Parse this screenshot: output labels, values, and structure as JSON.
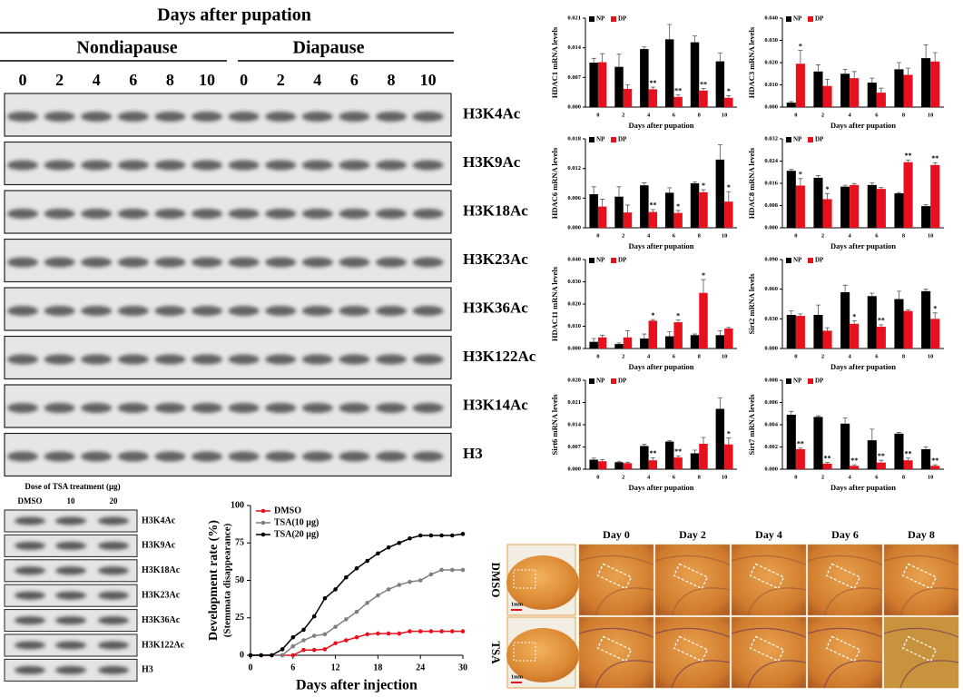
{
  "western_blot": {
    "title": "Days after pupation",
    "groups": [
      "Nondiapause",
      "Diapause"
    ],
    "lanes": [
      "0",
      "2",
      "4",
      "6",
      "8",
      "10",
      "0",
      "2",
      "4",
      "6",
      "8",
      "10"
    ],
    "rows": [
      "H3K4Ac",
      "H3K9Ac",
      "H3K18Ac",
      "H3K23Ac",
      "H3K36Ac",
      "H3K122Ac",
      "H3K14Ac",
      "H3"
    ]
  },
  "chart_data": [
    {
      "type": "bar",
      "ylabel": "HDAC1 mRNA  levels",
      "xlabel": "Days after pupation",
      "categories": [
        "0",
        "2",
        "4",
        "6",
        "8",
        "10"
      ],
      "ylim": [
        0,
        0.021
      ],
      "yticks": [
        {
          "value": 0,
          "label": "0.000"
        },
        {
          "value": 0.007,
          "label": "0.007"
        },
        {
          "value": 0.014,
          "label": "0.014"
        },
        {
          "value": 0.021,
          "label": "0.021"
        }
      ],
      "series": [
        {
          "name": "NP",
          "color": "#000000",
          "values": [
            0.0105,
            0.0095,
            0.0137,
            0.016,
            0.0153,
            0.0108
          ],
          "errors": [
            0.001,
            0.003,
            0.0005,
            0.0035,
            0.0015,
            0.002
          ]
        },
        {
          "name": "DP",
          "color": "#e8101c",
          "values": [
            0.0106,
            0.0043,
            0.0042,
            0.0024,
            0.0039,
            0.0022
          ],
          "errors": [
            0.002,
            0.001,
            0.0005,
            0.0005,
            0.0005,
            0.0005
          ],
          "annotations": [
            null,
            null,
            "**",
            "**",
            "**",
            "*"
          ]
        }
      ]
    },
    {
      "type": "bar",
      "ylabel": "HDAC3 mRNA  levels",
      "xlabel": "Days after pupation",
      "categories": [
        "0",
        "2",
        "4",
        "6",
        "8",
        "10"
      ],
      "ylim": [
        0,
        0.04
      ],
      "yticks": [
        {
          "value": 0,
          "label": "0.000"
        },
        {
          "value": 0.01,
          "label": "0.010"
        },
        {
          "value": 0.02,
          "label": "0.020"
        },
        {
          "value": 0.03,
          "label": "0.030"
        },
        {
          "value": 0.04,
          "label": "0.040"
        }
      ],
      "series": [
        {
          "name": "NP",
          "color": "#000000",
          "values": [
            0.002,
            0.016,
            0.015,
            0.011,
            0.017,
            0.022
          ],
          "errors": [
            0.0005,
            0.003,
            0.002,
            0.002,
            0.003,
            0.006
          ]
        },
        {
          "name": "DP",
          "color": "#e8101c",
          "values": [
            0.0195,
            0.0095,
            0.013,
            0.0065,
            0.0145,
            0.0205
          ],
          "errors": [
            0.006,
            0.003,
            0.003,
            0.002,
            0.003,
            0.004
          ],
          "annotations": [
            "*",
            null,
            null,
            null,
            null,
            null
          ]
        }
      ]
    },
    {
      "type": "bar",
      "ylabel": "HDAC6 mRNA  levels",
      "xlabel": "Days after pupation",
      "categories": [
        "0",
        "2",
        "4",
        "6",
        "8",
        "10"
      ],
      "ylim": [
        0,
        0.018
      ],
      "yticks": [
        {
          "value": 0,
          "label": "0.000"
        },
        {
          "value": 0.006,
          "label": "0.006"
        },
        {
          "value": 0.012,
          "label": "0.012"
        },
        {
          "value": 0.018,
          "label": "0.018"
        }
      ],
      "series": [
        {
          "name": "NP",
          "color": "#000000",
          "values": [
            0.0068,
            0.0063,
            0.0086,
            0.0071,
            0.009,
            0.0138
          ],
          "errors": [
            0.0015,
            0.002,
            0.0005,
            0.001,
            0.0003,
            0.003
          ]
        },
        {
          "name": "DP",
          "color": "#e8101c",
          "values": [
            0.0043,
            0.0031,
            0.0032,
            0.003,
            0.0072,
            0.0053
          ],
          "errors": [
            0.0015,
            0.0015,
            0.0005,
            0.0005,
            0.0005,
            0.002
          ],
          "annotations": [
            null,
            null,
            "**",
            "*",
            "*",
            "*"
          ]
        }
      ]
    },
    {
      "type": "bar",
      "ylabel": "HDAC8 mRNA  levels",
      "xlabel": "Days after pupation",
      "categories": [
        "0",
        "2",
        "4",
        "6",
        "8",
        "10"
      ],
      "ylim": [
        0,
        0.032
      ],
      "yticks": [
        {
          "value": 0,
          "label": "0.000"
        },
        {
          "value": 0.008,
          "label": "0.008"
        },
        {
          "value": 0.016,
          "label": "0.016"
        },
        {
          "value": 0.024,
          "label": "0.024"
        },
        {
          "value": 0.032,
          "label": "0.032"
        }
      ],
      "series": [
        {
          "name": "NP",
          "color": "#000000",
          "values": [
            0.0205,
            0.018,
            0.0148,
            0.0154,
            0.0124,
            0.0078
          ],
          "errors": [
            0.0005,
            0.0008,
            0.0005,
            0.0008,
            0.0003,
            0.0005
          ]
        },
        {
          "name": "DP",
          "color": "#e8101c",
          "values": [
            0.0152,
            0.0103,
            0.0154,
            0.014,
            0.0236,
            0.0226
          ],
          "errors": [
            0.0025,
            0.002,
            0.0005,
            0.0005,
            0.0008,
            0.0008
          ],
          "annotations": [
            "*",
            "*",
            null,
            null,
            "**",
            "**"
          ]
        }
      ]
    },
    {
      "type": "bar",
      "ylabel": "HDAC11 mRNA  levels",
      "xlabel": "Days after pupation",
      "categories": [
        "0",
        "2",
        "4",
        "6",
        "8",
        "10"
      ],
      "ylim": [
        0,
        0.04
      ],
      "yticks": [
        {
          "value": 0,
          "label": "0.000"
        },
        {
          "value": 0.01,
          "label": "0.010"
        },
        {
          "value": 0.02,
          "label": "0.020"
        },
        {
          "value": 0.03,
          "label": "0.030"
        },
        {
          "value": 0.04,
          "label": "0.040"
        }
      ],
      "series": [
        {
          "name": "NP",
          "color": "#000000",
          "values": [
            0.003,
            0.002,
            0.0045,
            0.0055,
            0.006,
            0.006
          ],
          "errors": [
            0.0015,
            0.0005,
            0.002,
            0.002,
            0.0005,
            0.002
          ]
        },
        {
          "name": "DP",
          "color": "#e8101c",
          "values": [
            0.005,
            0.005,
            0.0125,
            0.0118,
            0.025,
            0.009
          ],
          "errors": [
            0.001,
            0.003,
            0.0005,
            0.001,
            0.006,
            0.0005
          ],
          "annotations": [
            null,
            null,
            "*",
            "*",
            "*",
            null
          ]
        }
      ]
    },
    {
      "type": "bar",
      "ylabel": "Sirt2 mRNA  levels",
      "xlabel": "Days after pupation",
      "categories": [
        "0",
        "2",
        "4",
        "6",
        "8",
        "10"
      ],
      "ylim": [
        0,
        0.09
      ],
      "yticks": [
        {
          "value": 0,
          "label": "0.000"
        },
        {
          "value": 0.03,
          "label": "0.030"
        },
        {
          "value": 0.06,
          "label": "0.060"
        },
        {
          "value": 0.09,
          "label": "0.090"
        }
      ],
      "series": [
        {
          "name": "NP",
          "color": "#000000",
          "values": [
            0.034,
            0.034,
            0.057,
            0.053,
            0.05,
            0.058
          ],
          "errors": [
            0.004,
            0.01,
            0.007,
            0.003,
            0.008,
            0.002
          ]
        },
        {
          "name": "DP",
          "color": "#e8101c",
          "values": [
            0.033,
            0.018,
            0.025,
            0.022,
            0.038,
            0.03
          ],
          "errors": [
            0.002,
            0.003,
            0.003,
            0.002,
            0.001,
            0.006
          ],
          "annotations": [
            null,
            null,
            "*",
            "**",
            null,
            "*"
          ]
        }
      ]
    },
    {
      "type": "bar",
      "ylabel": "Sirt6 mRNA  levels",
      "xlabel": "Days after pupation",
      "categories": [
        "0",
        "2",
        "4",
        "6",
        "8",
        "10"
      ],
      "ylim": [
        0,
        0.028
      ],
      "yticks": [
        {
          "value": 0,
          "label": "0.000"
        },
        {
          "value": 0.007,
          "label": "0.007"
        },
        {
          "value": 0.014,
          "label": "0.014"
        },
        {
          "value": 0.021,
          "label": "0.021"
        },
        {
          "value": 0.028,
          "label": "0.028"
        }
      ],
      "series": [
        {
          "name": "NP",
          "color": "#000000",
          "values": [
            0.003,
            0.0022,
            0.0073,
            0.0087,
            0.005,
            0.019
          ],
          "errors": [
            0.0005,
            0.0003,
            0.0005,
            0.0003,
            0.001,
            0.0035
          ]
        },
        {
          "name": "DP",
          "color": "#e8101c",
          "values": [
            0.0025,
            0.0019,
            0.0028,
            0.0037,
            0.008,
            0.0078
          ],
          "errors": [
            0.0005,
            0.0003,
            0.0008,
            0.0005,
            0.002,
            0.002
          ],
          "annotations": [
            null,
            null,
            "**",
            "**",
            null,
            "*"
          ]
        }
      ]
    },
    {
      "type": "bar",
      "ylabel": "Sirt7 mRNA  levels",
      "xlabel": "Days after pupation",
      "categories": [
        "0",
        "2",
        "4",
        "6",
        "8",
        "10"
      ],
      "ylim": [
        0,
        0.008
      ],
      "yticks": [
        {
          "value": 0,
          "label": "0.000"
        },
        {
          "value": 0.002,
          "label": "0.002"
        },
        {
          "value": 0.004,
          "label": "0.004"
        },
        {
          "value": 0.006,
          "label": "0.006"
        },
        {
          "value": 0.008,
          "label": "0.008"
        }
      ],
      "series": [
        {
          "name": "NP",
          "color": "#000000",
          "values": [
            0.0049,
            0.0047,
            0.0041,
            0.0026,
            0.0032,
            0.0018
          ],
          "errors": [
            0.0003,
            0.0001,
            0.0005,
            0.001,
            0.0001,
            0.0002
          ]
        },
        {
          "name": "DP",
          "color": "#e8101c",
          "values": [
            0.0018,
            0.0005,
            0.0003,
            0.0006,
            0.0008,
            0.0003
          ],
          "errors": [
            0.0001,
            0.0001,
            0.0001,
            0.0002,
            0.0002,
            0.0001
          ],
          "annotations": [
            "**",
            "**",
            "**",
            "**",
            "**",
            "**"
          ]
        }
      ]
    },
    {
      "type": "line",
      "ylabel": [
        "Development rate (%)",
        "(Stemmata disappearance)"
      ],
      "xlabel": "Days after injection",
      "x": [
        0,
        1.5,
        3,
        4.5,
        6,
        7.5,
        9,
        10.5,
        12,
        13.5,
        15,
        16.5,
        18,
        19.5,
        21,
        22.5,
        24,
        25.5,
        27,
        28.5,
        30
      ],
      "xlim": [
        0,
        30
      ],
      "xticks": [
        0,
        6,
        12,
        18,
        24,
        30
      ],
      "ylim": [
        0,
        100
      ],
      "yticks": [
        0,
        25,
        50,
        75,
        100
      ],
      "series": [
        {
          "name": "DMSO",
          "color": "#e8101c",
          "values": [
            0,
            0,
            0,
            0,
            0,
            3.5,
            3.5,
            4,
            8,
            10,
            12,
            14,
            14.5,
            14.5,
            14.5,
            16,
            16,
            16,
            16,
            16,
            16
          ]
        },
        {
          "name": "TSA(10 μg)",
          "color": "#808080",
          "values": [
            0,
            0,
            0,
            0,
            6,
            10,
            13,
            14,
            19,
            24,
            29,
            35,
            40,
            44,
            47,
            49,
            50,
            54,
            57,
            57,
            57
          ]
        },
        {
          "name": "TSA(20 μg)",
          "color": "#000000",
          "values": [
            0,
            0,
            0,
            4,
            12,
            17,
            26,
            38,
            44,
            52,
            58,
            63,
            68,
            72,
            75,
            78,
            80,
            80,
            80,
            80,
            81
          ]
        }
      ]
    }
  ],
  "tsa_blot": {
    "title": "Dose of TSA treatment (μg)",
    "lanes": [
      "DMSO",
      "10",
      "20"
    ],
    "rows": [
      "H3K4Ac",
      "H3K9Ac",
      "H3K18Ac",
      "H3K23Ac",
      "H3K36Ac",
      "H3K122Ac",
      "H3"
    ]
  },
  "photo_panel": {
    "days": [
      "Day 0",
      "Day 2",
      "Day 4",
      "Day 6",
      "Day 8"
    ],
    "rows": [
      "DMSO",
      "TSA"
    ],
    "scale": "1mm"
  }
}
